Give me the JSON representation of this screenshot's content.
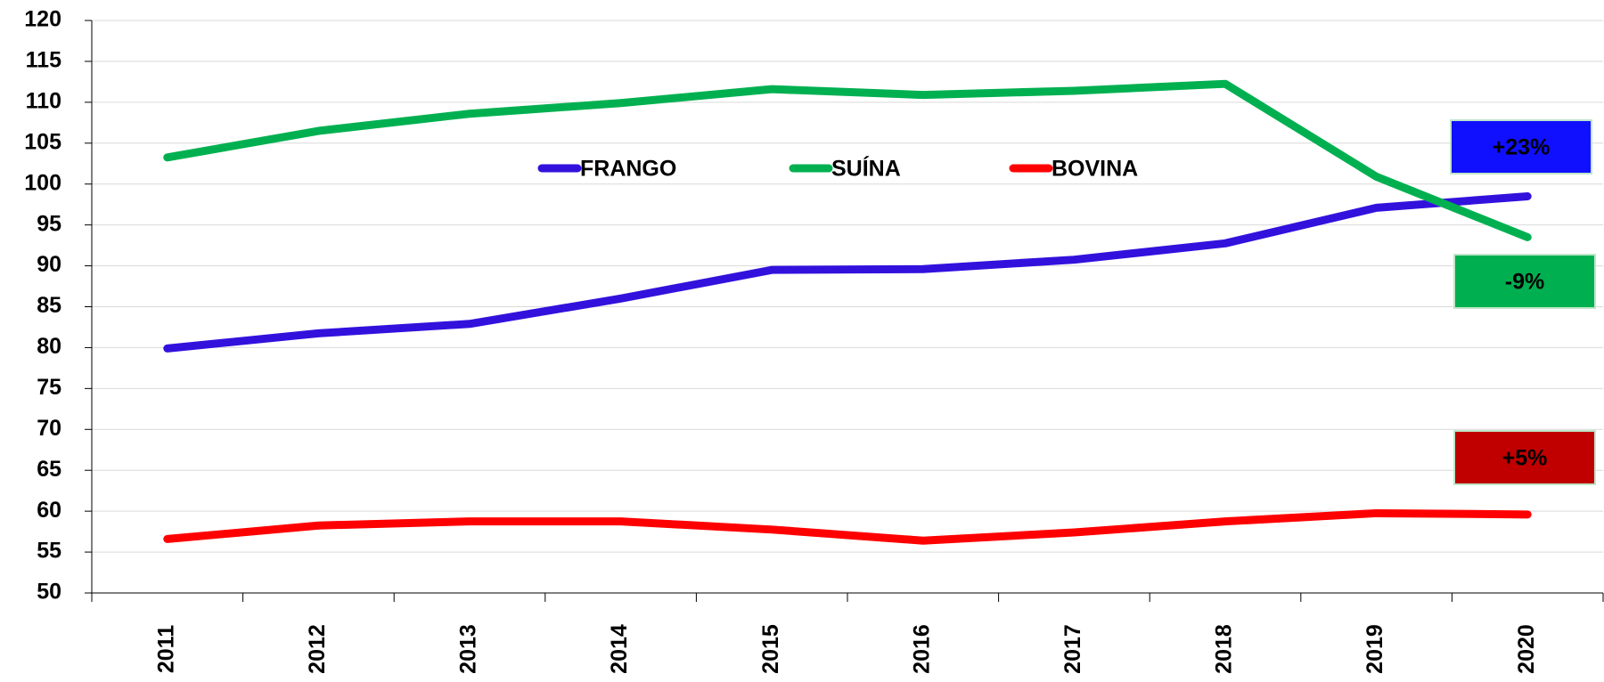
{
  "chart_data": {
    "type": "line",
    "categories": [
      "2011",
      "2012",
      "2013",
      "2014",
      "2015",
      "2016",
      "2017",
      "2018",
      "2019",
      "2020"
    ],
    "series": [
      {
        "name": "FRANGO",
        "color": "#3311dd",
        "values": [
          79.9,
          81.75,
          82.9,
          86,
          89.5,
          89.6,
          90.75,
          92.75,
          97.1,
          98.5
        ]
      },
      {
        "name": "SUÍNA",
        "color": "#00b050",
        "values": [
          103.25,
          106.5,
          108.6,
          109.9,
          111.6,
          110.9,
          111.4,
          112.25,
          100.9,
          93.5
        ]
      },
      {
        "name": "BOVINA",
        "color": "#ff0000",
        "values": [
          56.6,
          58.25,
          58.75,
          58.75,
          57.75,
          56.4,
          57.4,
          58.75,
          59.75,
          59.6
        ]
      }
    ],
    "annotations": [
      {
        "text": "+23%",
        "color": "#1010ff"
      },
      {
        "text": "-9%",
        "color": "#00b050"
      },
      {
        "text": "+5%",
        "color": "#c00000"
      }
    ],
    "ylim": [
      50,
      120
    ],
    "yticks": [
      50,
      55,
      60,
      65,
      70,
      75,
      80,
      85,
      90,
      95,
      100,
      105,
      110,
      115,
      120
    ],
    "grid": true,
    "legend": "top"
  }
}
